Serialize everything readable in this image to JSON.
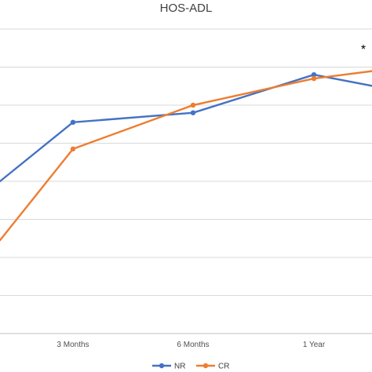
{
  "chart_data": {
    "type": "line",
    "title": "HOS-ADL",
    "categories": [
      "",
      "3 Months",
      "6  Months",
      "1 Year",
      ""
    ],
    "ylim": [
      0,
      8
    ],
    "grid": true,
    "legend_position": "bottom",
    "annotation": "*",
    "series": [
      {
        "name": "NR",
        "color": "#4472c4",
        "values": [
          4.0,
          5.55,
          5.8,
          6.8,
          6.5
        ]
      },
      {
        "name": "CR",
        "color": "#ed7d31",
        "values": [
          2.45,
          4.85,
          6.0,
          6.7,
          6.9
        ]
      }
    ]
  }
}
